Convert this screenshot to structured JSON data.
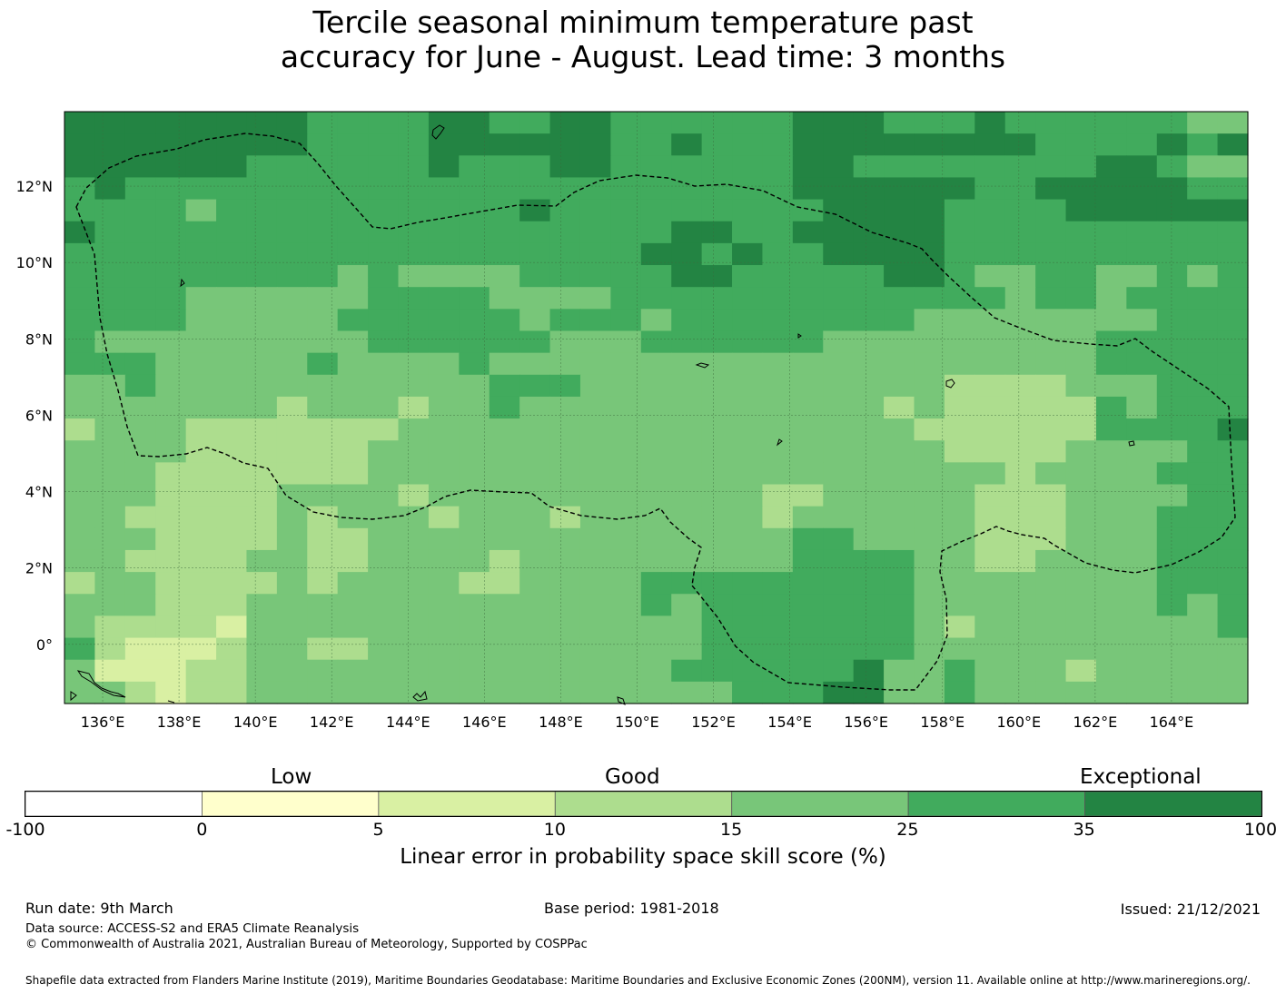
{
  "title_lines": [
    "Tercile seasonal minimum temperature past",
    "accuracy for June - August. Lead time: 3 months"
  ],
  "map": {
    "lon_ticks": [
      "136°E",
      "138°E",
      "140°E",
      "142°E",
      "144°E",
      "146°E",
      "148°E",
      "150°E",
      "152°E",
      "154°E",
      "156°E",
      "158°E",
      "160°E",
      "162°E",
      "164°E"
    ],
    "lat_ticks": [
      "12°N",
      "10°N",
      "8°N",
      "6°N",
      "4°N",
      "2°N",
      "0°"
    ],
    "grid": true,
    "region_boundary": "dashed",
    "skill_grid_rows_north_to_south": [
      "666666665555665566555555666555655555544",
      "666666665555666666556555666666665555656",
      "666666555555655566555555665555555566544",
      "565555555555555555555555666666556666655",
      "555545555555555655555555566665555666666",
      "655555555555555555556655666665555555555",
      "555555555555555555566565566665555555555",
      "555555555454444555556655555665445544545",
      "555544444455554444555555555555545545555",
      "555544444555555455545555555544444444555",
      "544444444455555544455555544444444455555",
      "555444445444454444444444444444444455555",
      "445444444444445554444444444443333444555",
      "444444434443445444444444444343333354555",
      "344433333334444444444444444433333355556",
      "444433333344444444444444444443333444455",
      "444333333344444444444444444444434444555",
      "444333344443444444444443344444333444455",
      "443333343444344434444443444444333444555",
      "444333343344444444444444554444333444555",
      "443333443344443444444444555544334444555",
      "344333343444433444455555555544444444555",
      "444333444444444444454555555544444444545",
      "433332444444444444444555555543444444445",
      "532223443344444444444555555544444444444",
      "422233444444444444445555556445444344444",
      "443233444444444444444455566445444444444"
    ]
  },
  "legend": {
    "category_low": "Low",
    "category_good": "Good",
    "category_exceptional": "Exceptional",
    "ticks": [
      "-100",
      "0",
      "5",
      "10",
      "15",
      "25",
      "35",
      "100"
    ],
    "colors": [
      "#ffffff",
      "#ffffcc",
      "#d9f0a3",
      "#addd8e",
      "#78c679",
      "#41ab5d",
      "#238443"
    ],
    "label": "Linear error in probability space skill score (%)"
  },
  "footer": {
    "run_date": "Run date: 9th March",
    "base_period": "Base period: 1981-2018",
    "issued": "Issued: 21/12/2021",
    "data_source": "Data source: ACCESS-S2 and ERA5 Climate Reanalysis",
    "copyright": "© Commonwealth of Australia 2021, Australian Bureau of Meteorology, Supported by COSPPac",
    "shapefile": "Shapefile data extracted from Flanders Marine Institute (2019), Maritime Boundaries Geodatabase: Maritime Boundaries and Exclusive Economic Zones (200NM), version 11. Available online at http://www.marineregions.org/."
  }
}
